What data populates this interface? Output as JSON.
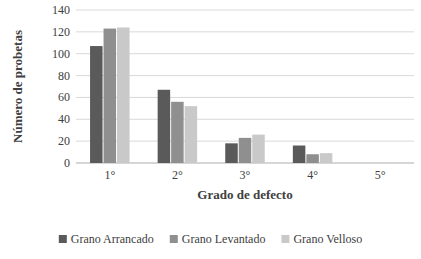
{
  "chart_data": {
    "type": "bar",
    "x_label": "Grado de defecto",
    "y_label": "Número de probetas",
    "categories": [
      "1°",
      "2°",
      "3°",
      "4°",
      "5°"
    ],
    "series": [
      {
        "name": "Grano Arrancado",
        "color": "#5a5a5a",
        "values": [
          107,
          67,
          18,
          16,
          0
        ]
      },
      {
        "name": "Grano Levantado",
        "color": "#8f8f8f",
        "values": [
          123,
          56,
          23,
          8,
          0
        ]
      },
      {
        "name": "Grano Velloso",
        "color": "#c9c9c9",
        "values": [
          124,
          52,
          26,
          9,
          0
        ]
      }
    ],
    "ylim": [
      0,
      140
    ],
    "yticks": [
      0,
      20,
      40,
      60,
      80,
      100,
      120,
      140
    ],
    "grid": true,
    "legend": "bottom"
  }
}
